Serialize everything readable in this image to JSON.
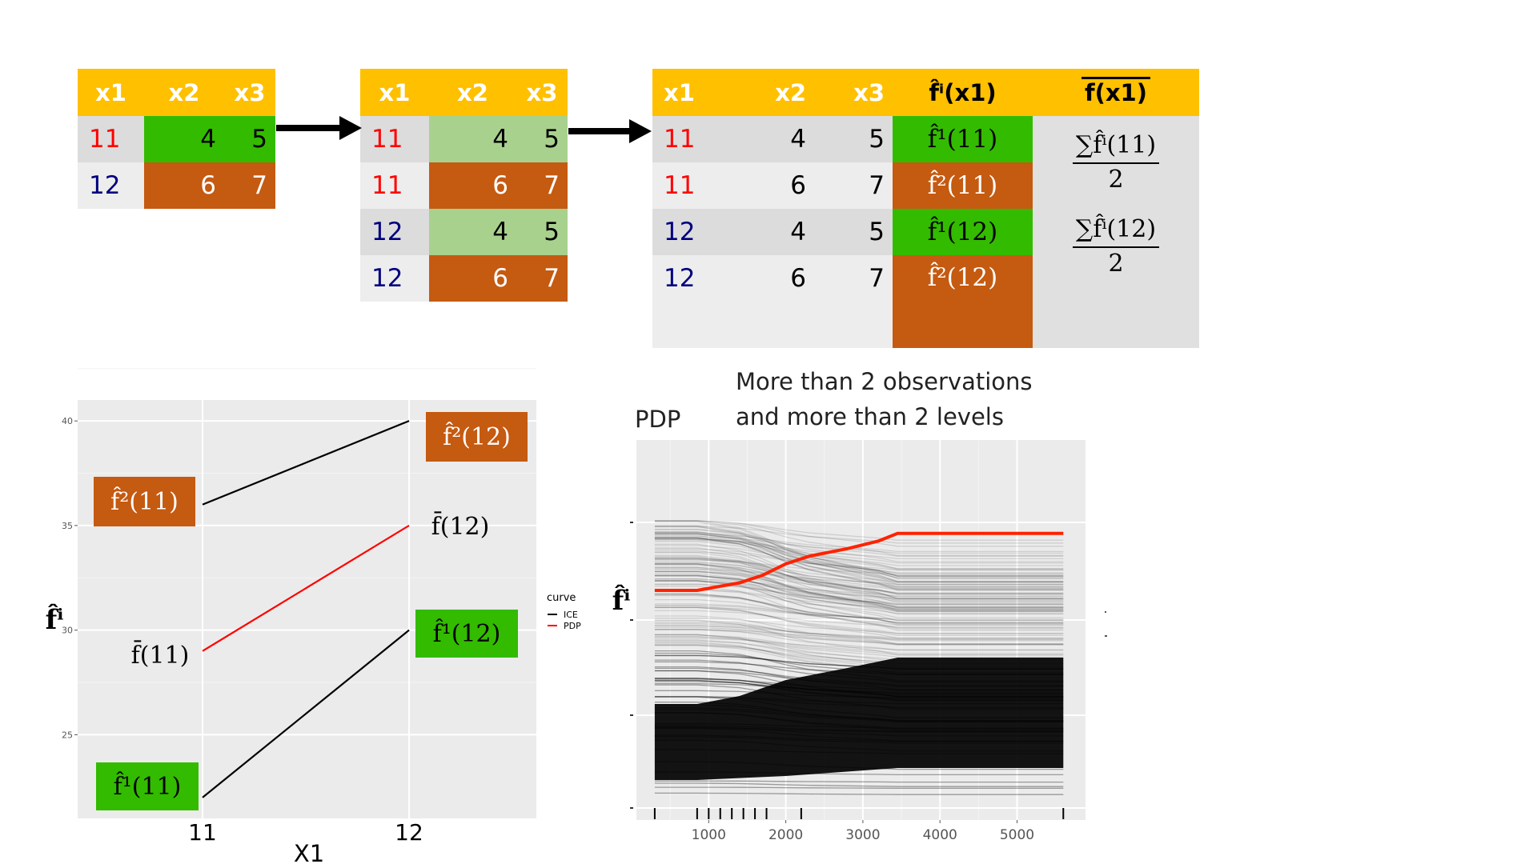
{
  "table1": {
    "headers": [
      "x1",
      "x2",
      "x3"
    ],
    "rows": [
      {
        "x1": "11",
        "x2": "4",
        "x3": "5"
      },
      {
        "x1": "12",
        "x2": "6",
        "x3": "7"
      }
    ]
  },
  "table2": {
    "headers": [
      "x1",
      "x2",
      "x3"
    ],
    "rows": [
      {
        "x1": "11",
        "x2": "4",
        "x3": "5"
      },
      {
        "x1": "11",
        "x2": "6",
        "x3": "7"
      },
      {
        "x1": "12",
        "x2": "4",
        "x3": "5"
      },
      {
        "x1": "12",
        "x2": "6",
        "x3": "7"
      }
    ]
  },
  "table3": {
    "headers": [
      "x1",
      "x2",
      "x3",
      "f̂ⁱ(x1)",
      "f(x1)"
    ],
    "rows": [
      {
        "x1": "11",
        "x2": "4",
        "x3": "5",
        "f": "f̂¹(11)"
      },
      {
        "x1": "11",
        "x2": "6",
        "x3": "7",
        "f": "f̂²(11)"
      },
      {
        "x1": "12",
        "x2": "4",
        "x3": "5",
        "f": "f̂¹(12)"
      },
      {
        "x1": "12",
        "x2": "6",
        "x3": "7",
        "f": "f̂²(12)"
      }
    ],
    "avg": [
      {
        "numerator": "∑f̂ⁱ(11)",
        "denominator": "2"
      },
      {
        "numerator": "∑f̂ⁱ(12)",
        "denominator": "2"
      }
    ]
  },
  "chart_data": [
    {
      "type": "line",
      "title": "",
      "xlabel": "X1",
      "ylabel": "f̂ⁱ",
      "x": [
        11,
        12
      ],
      "xticks": [
        "11",
        "12"
      ],
      "yticks": [
        "25",
        "30",
        "35",
        "40"
      ],
      "ylim": [
        21,
        41
      ],
      "grid": true,
      "legend": {
        "title": "curve",
        "entries": [
          "ICE",
          "PDP"
        ],
        "colors": [
          "#000000",
          "#ff0000"
        ],
        "placement": "right"
      },
      "series": [
        {
          "name": "ICE",
          "color": "#000000",
          "values": [
            36,
            40
          ]
        },
        {
          "name": "PDP",
          "color": "#ff0000",
          "values": [
            29,
            35
          ]
        },
        {
          "name": "ICE",
          "color": "#000000",
          "values": [
            22,
            30
          ]
        }
      ],
      "annotations": [
        {
          "text": "f̂²(11)",
          "fill": "#c55a11"
        },
        {
          "text": "f̂²(12)",
          "fill": "#c55a11"
        },
        {
          "text": "f̄(11)",
          "fill": ""
        },
        {
          "text": "f̄(12)",
          "fill": ""
        },
        {
          "text": "f̂¹(11)",
          "fill": "#33bb00"
        },
        {
          "text": "f̂¹(12)",
          "fill": "#33bb00"
        }
      ]
    },
    {
      "type": "line",
      "title": "PDP",
      "ylabel": "f̂ⁱ",
      "xticks": [
        "1000",
        "2000",
        "3000",
        "4000",
        "5000"
      ],
      "xlim": [
        0,
        6000
      ],
      "grid": true,
      "pdp": {
        "color": "#ff2200",
        "x": [
          300,
          850,
          1400,
          1700,
          2000,
          2300,
          2800,
          3200,
          3450,
          4000,
          5600
        ],
        "y": [
          0.52,
          0.52,
          0.54,
          0.56,
          0.59,
          0.61,
          0.63,
          0.65,
          0.67,
          0.67,
          0.67
        ]
      },
      "rug": [
        300,
        850,
        1000,
        1150,
        1300,
        1450,
        1600,
        1750,
        2200,
        5600
      ]
    }
  ],
  "annotation_text": {
    "line1": "More than 2 observations",
    "line2": "and more than 2 levels"
  }
}
